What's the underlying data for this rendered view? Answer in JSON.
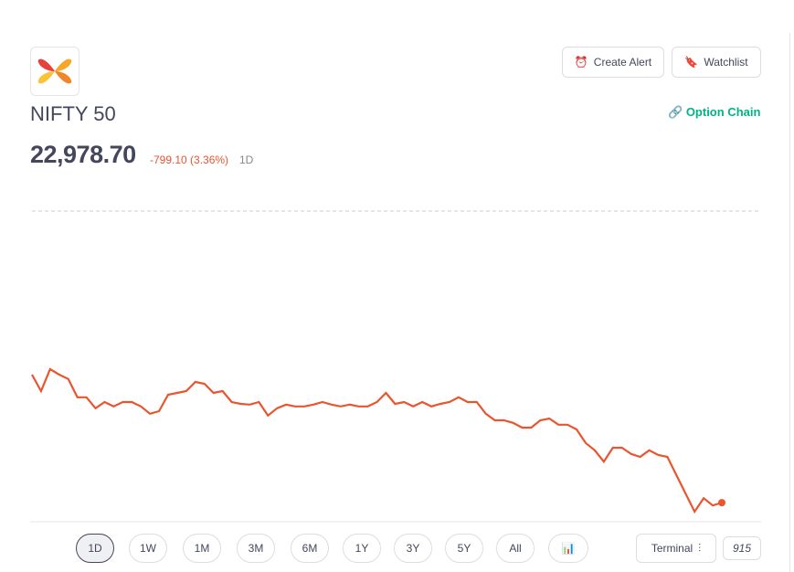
{
  "header": {
    "name": "NIFTY 50",
    "price": "22,978.70",
    "change": "-799.10 (3.36%)",
    "period": "1D",
    "buttons": [
      "Create Alert",
      "Watchlist"
    ],
    "link": "Option Chain"
  },
  "chart_data": {
    "type": "line",
    "color": "#e8552f",
    "series": [
      {
        "values": [
          23329,
          23284,
          23344,
          23329,
          23317,
          23267,
          23267,
          23237,
          23254,
          23242,
          23254,
          23254,
          23242,
          23222,
          23229,
          23274,
          23279,
          23284,
          23309,
          23304,
          23279,
          23284,
          23254,
          23249,
          23247,
          23254,
          23217,
          23237,
          23247,
          23242,
          23242,
          23247,
          23254,
          23247,
          23242,
          23247,
          23242,
          23242,
          23254,
          23279,
          23249,
          23254,
          23242,
          23254,
          23242,
          23249,
          23254,
          23267,
          23254,
          23254,
          23222,
          23204,
          23204,
          23197,
          23184,
          23184,
          23204,
          23209,
          23192,
          23192,
          23179,
          23142,
          23122,
          23091,
          23129,
          23129,
          23112,
          23104,
          23122,
          23109,
          23104,
          23054,
          23004,
          22954,
          22991,
          22971,
          22978.7
        ]
      }
    ]
  },
  "ranges": [
    "1D",
    "1W",
    "1M",
    "3M",
    "6M",
    "1Y",
    "3Y",
    "5Y",
    "All"
  ],
  "footer": {
    "terminal": "Terminal",
    "time": "915"
  }
}
